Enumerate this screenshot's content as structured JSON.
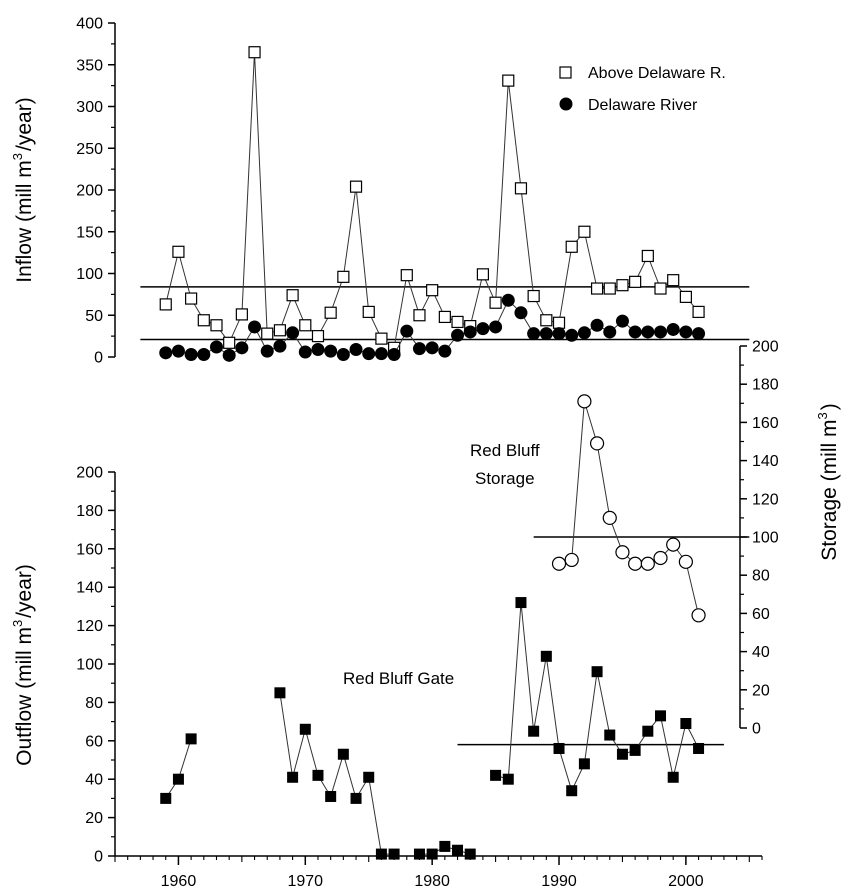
{
  "chart_data": [
    {
      "type": "line",
      "panel": "inflow",
      "ylabel_main": "Inflow (mill m",
      "ylabel_sup": "3",
      "ylabel_tail": "/year)",
      "ylim": [
        0,
        400
      ],
      "yticks": [
        "0",
        "50",
        "100",
        "150",
        "200",
        "250",
        "300",
        "350",
        "400"
      ],
      "ytick_values": [
        0,
        50,
        100,
        150,
        200,
        250,
        300,
        350,
        400
      ],
      "legend_position": "top-right",
      "series": [
        {
          "name": "Above Delaware R.",
          "marker": "open-square",
          "connected": true,
          "x": [
            1959,
            1960,
            1961,
            1962,
            1963,
            1964,
            1965,
            1966,
            1967,
            1968,
            1969,
            1970,
            1971,
            1972,
            1973,
            1974,
            1975,
            1976,
            1977,
            1978,
            1979,
            1980,
            1981,
            1982,
            1983,
            1984,
            1985,
            1986,
            1987,
            1988,
            1989,
            1990,
            1991,
            1992,
            1993,
            1994,
            1995,
            1996,
            1997,
            1998,
            1999,
            2000,
            2001
          ],
          "y": [
            63,
            126,
            70,
            44,
            38,
            17,
            51,
            365,
            28,
            32,
            74,
            38,
            25,
            53,
            96,
            204,
            54,
            22,
            11,
            98,
            50,
            80,
            48,
            42,
            37,
            99,
            65,
            331,
            202,
            73,
            44,
            41,
            132,
            150,
            82,
            82,
            86,
            90,
            121,
            82,
            92,
            72,
            54
          ]
        },
        {
          "name": "Delaware River",
          "marker": "filled-circle",
          "connected": true,
          "x": [
            1959,
            1960,
            1961,
            1962,
            1963,
            1964,
            1965,
            1966,
            1967,
            1968,
            1969,
            1970,
            1971,
            1972,
            1973,
            1974,
            1975,
            1976,
            1977,
            1978,
            1979,
            1980,
            1981,
            1982,
            1983,
            1984,
            1985,
            1986,
            1987,
            1988,
            1989,
            1990,
            1991,
            1992,
            1993,
            1994,
            1995,
            1996,
            1997,
            1998,
            1999,
            2000,
            2001
          ],
          "y": [
            5,
            7,
            3,
            3,
            12,
            2,
            11,
            36,
            7,
            13,
            29,
            6,
            9,
            7,
            3,
            9,
            4,
            4,
            3,
            31,
            10,
            11,
            7,
            26,
            30,
            34,
            36,
            68,
            53,
            28,
            28,
            28,
            26,
            29,
            38,
            30,
            43,
            30,
            30,
            30,
            33,
            30,
            28
          ]
        }
      ],
      "reference_lines": [
        {
          "y": 84,
          "x_start": 1957,
          "x_end": 2005
        },
        {
          "y": 21,
          "x_start": 1957,
          "x_end": 2005
        }
      ]
    },
    {
      "type": "scatter",
      "panel": "outflow",
      "annotation": "Red Bluff Gate",
      "ylabel_main": "Outflow (mill m",
      "ylabel_sup": "3",
      "ylabel_tail": "/year)",
      "ylim": [
        0,
        200
      ],
      "yticks": [
        "0",
        "20",
        "40",
        "60",
        "80",
        "100",
        "120",
        "140",
        "160",
        "180",
        "200"
      ],
      "ytick_values": [
        0,
        20,
        40,
        60,
        80,
        100,
        120,
        140,
        160,
        180,
        200
      ],
      "xlim": [
        1955,
        2006
      ],
      "xticks": [
        "1960",
        "1970",
        "1980",
        "1990",
        "2000"
      ],
      "xtick_values": [
        1960,
        1970,
        1980,
        1990,
        2000
      ],
      "series": [
        {
          "marker": "filled-square",
          "segments": [
            {
              "x": [
                1959,
                1960,
                1961
              ],
              "y": [
                30,
                40,
                61
              ],
              "connected": true
            },
            {
              "x": [
                1968,
                1969,
                1970,
                1971,
                1972,
                1973,
                1974,
                1975,
                1976,
                1977
              ],
              "y": [
                85,
                41,
                66,
                42,
                31,
                53,
                30,
                41,
                1,
                1
              ],
              "connected": true
            },
            {
              "x": [
                1979,
                1980,
                1981,
                1982,
                1983
              ],
              "y": [
                1,
                1,
                5,
                3,
                1
              ],
              "connected": true
            },
            {
              "x": [
                1985,
                1986,
                1987,
                1988,
                1989,
                1990,
                1991,
                1992,
                1993,
                1994,
                1995,
                1996,
                1997,
                1998,
                1999,
                2000,
                2001
              ],
              "y": [
                42,
                40,
                132,
                65,
                104,
                56,
                34,
                48,
                96,
                63,
                53,
                55,
                65,
                73,
                41,
                69,
                56
              ],
              "connected": true
            }
          ]
        }
      ],
      "reference_lines": [
        {
          "y": 58,
          "x_start": 1982,
          "x_end": 2003
        }
      ]
    },
    {
      "type": "line",
      "panel": "storage",
      "annotation_line1": "Red Bluff",
      "annotation_line2": "Storage",
      "ylabel_main": "Storage (mill m",
      "ylabel_sup": "3",
      "ylabel_tail": ")",
      "ylim": [
        0,
        200
      ],
      "yticks": [
        "0",
        "20",
        "40",
        "60",
        "80",
        "100",
        "120",
        "140",
        "160",
        "180",
        "200"
      ],
      "ytick_values": [
        0,
        20,
        40,
        60,
        80,
        100,
        120,
        140,
        160,
        180,
        200
      ],
      "series": [
        {
          "marker": "open-circle",
          "connected": true,
          "x": [
            1990,
            1991,
            1992,
            1993,
            1994,
            1995,
            1996,
            1997,
            1998,
            1999,
            2000,
            2001
          ],
          "y": [
            86,
            88,
            171,
            149,
            110,
            92,
            86,
            86,
            89,
            96,
            87,
            59
          ]
        }
      ],
      "reference_lines": [
        {
          "y": 100,
          "x_start": 1988,
          "x_end": 2005
        }
      ]
    }
  ]
}
